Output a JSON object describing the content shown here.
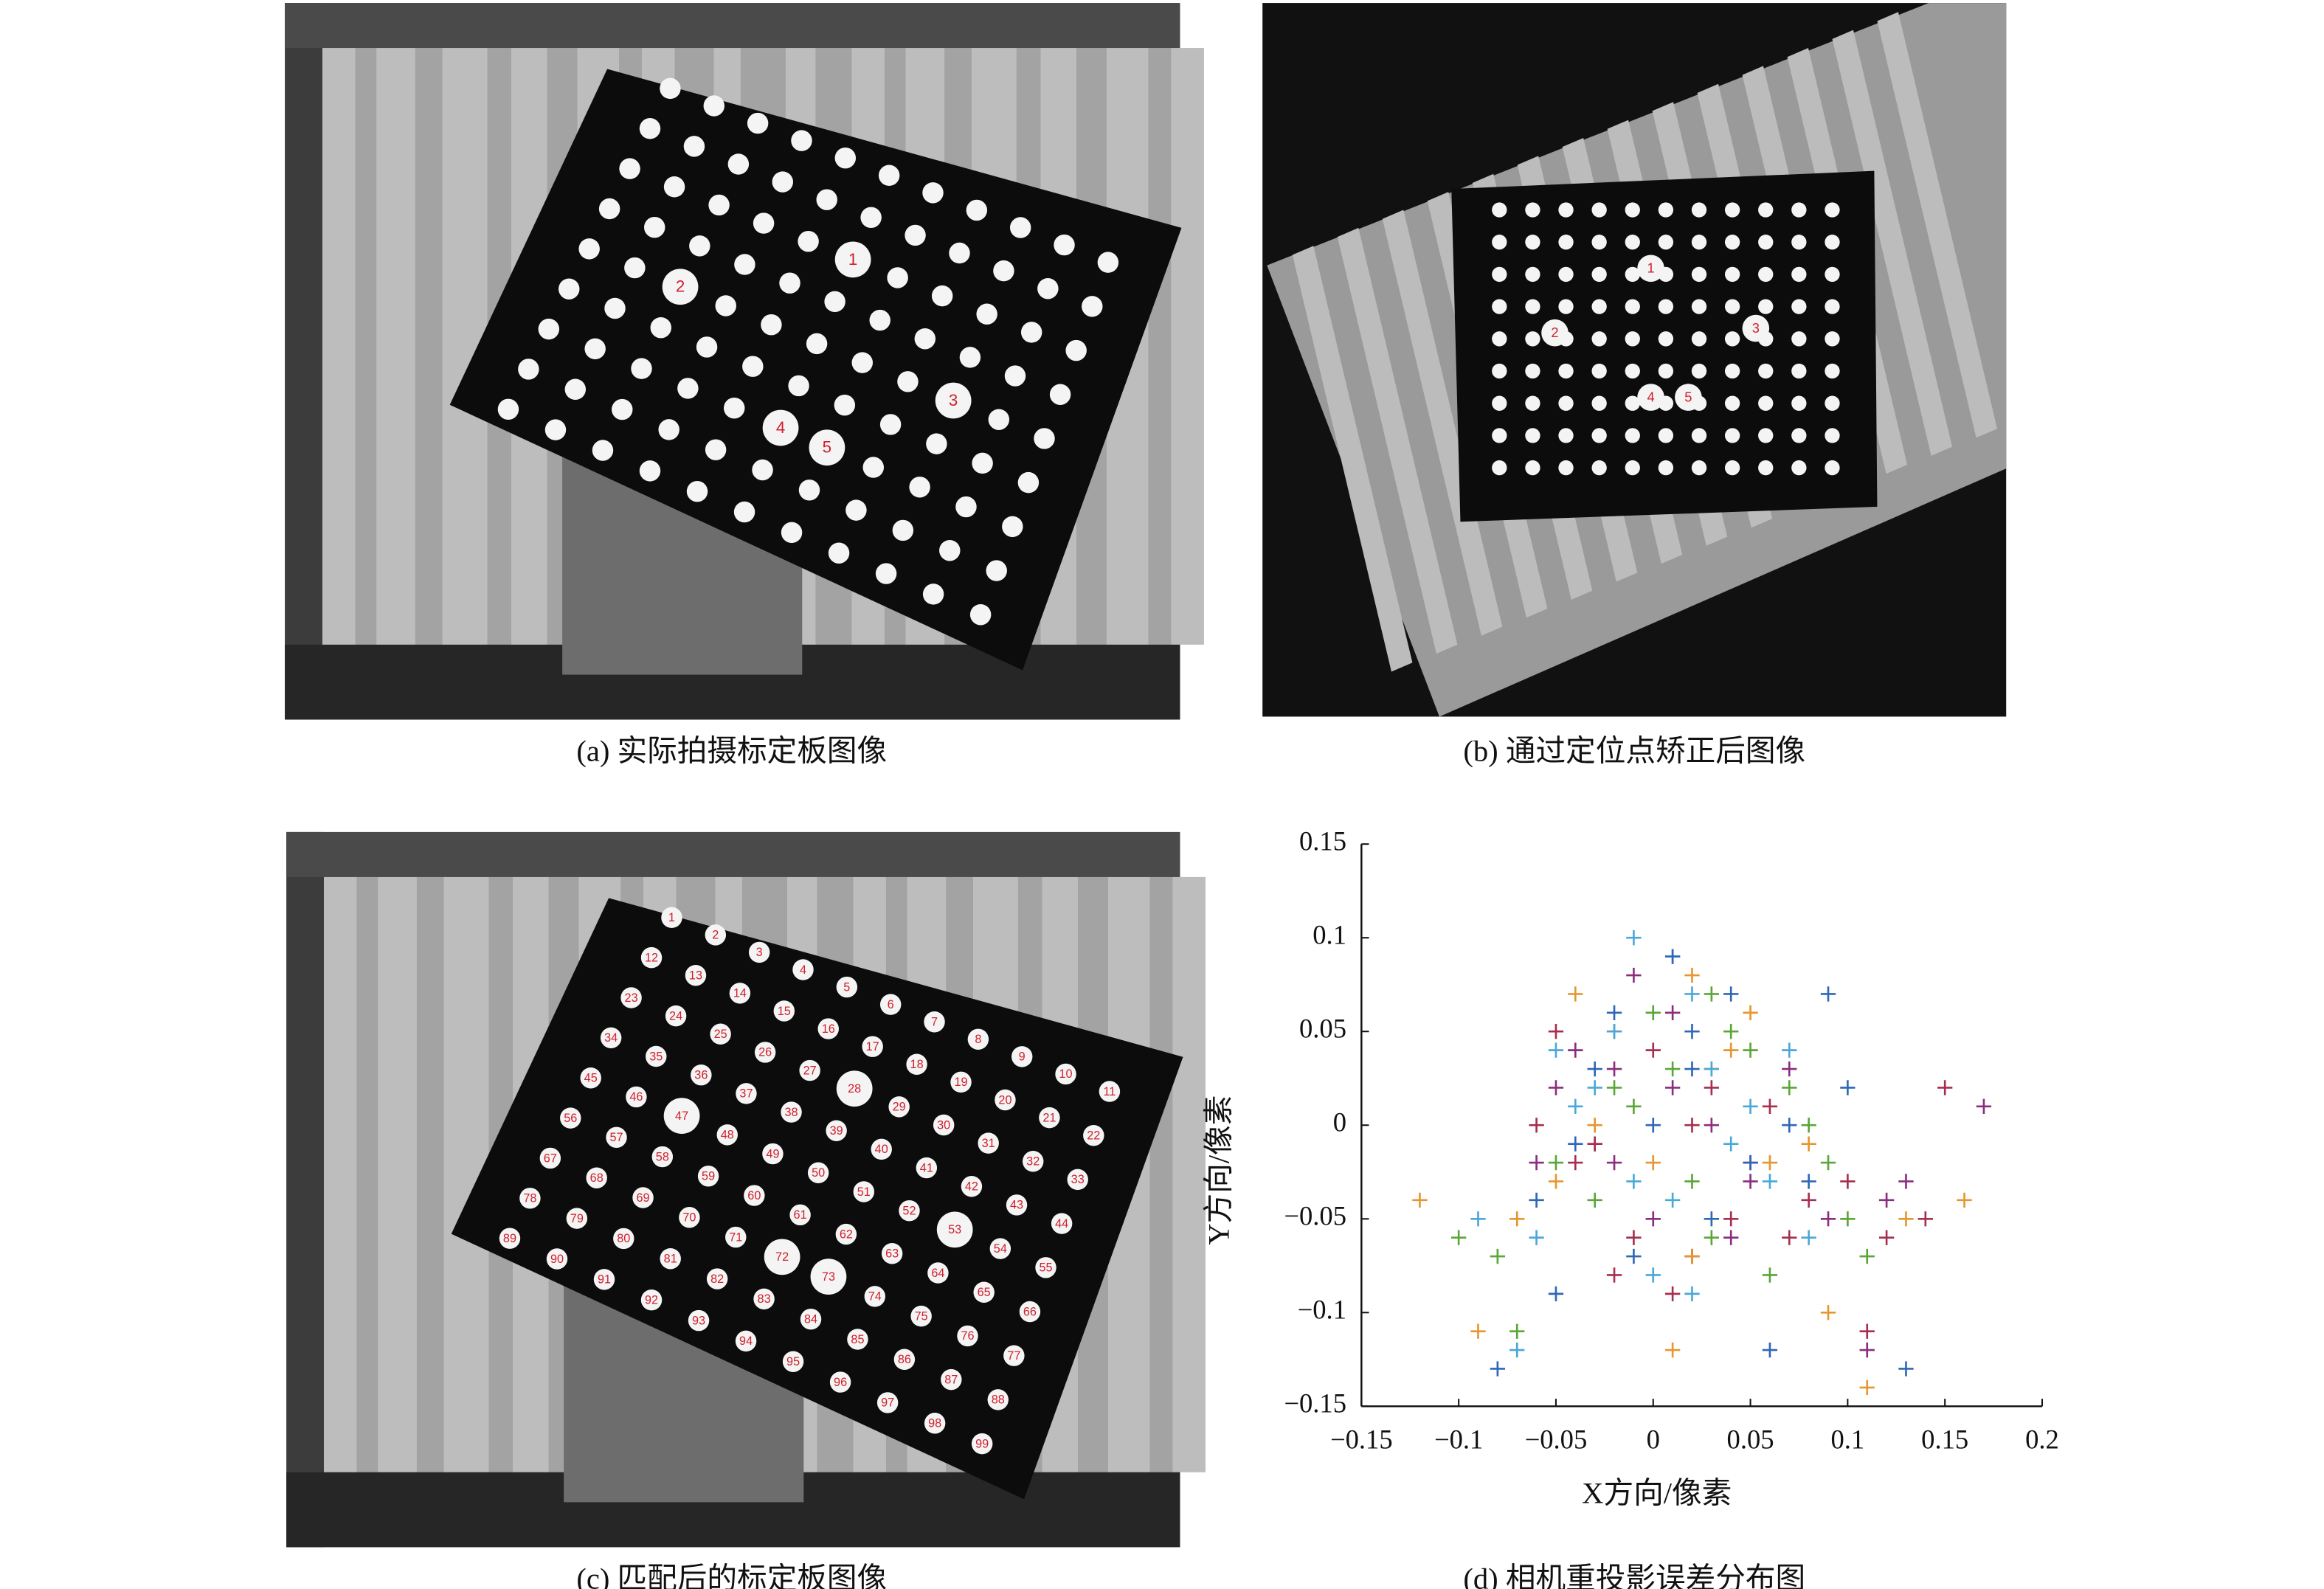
{
  "panels": [
    {
      "caption": "(a) 实际拍摄标定板图像",
      "dot_labels": [
        "1",
        "2",
        "3",
        "4",
        "5"
      ]
    },
    {
      "caption": "(b) 通过定位点矫正后图像",
      "dot_labels": [
        "1",
        "2",
        "3",
        "4",
        "5"
      ]
    },
    {
      "caption": "(c) 匹配后的标定板图像",
      "dot_labels": [
        "1",
        "2",
        "3",
        "4",
        "5",
        "6",
        "7",
        "8",
        "9",
        "10",
        "11",
        "12",
        "13",
        "14",
        "15",
        "16",
        "17",
        "18",
        "19",
        "20",
        "21",
        "22",
        "23",
        "24",
        "25",
        "26",
        "27",
        "28",
        "29",
        "30",
        "31",
        "32",
        "33",
        "34",
        "35",
        "36",
        "37",
        "38",
        "39",
        "40",
        "41",
        "42",
        "43",
        "44",
        "45",
        "46",
        "47",
        "48",
        "49",
        "50",
        "51",
        "52",
        "53",
        "54",
        "55",
        "56",
        "57",
        "58",
        "59",
        "60",
        "61",
        "62",
        "63",
        "64",
        "65",
        "66",
        "67",
        "68",
        "69",
        "70",
        "71",
        "72",
        "73",
        "74",
        "75",
        "76",
        "77",
        "78",
        "79",
        "80",
        "81",
        "82",
        "83",
        "84",
        "85",
        "86",
        "87",
        "88",
        "89",
        "90",
        "91",
        "92",
        "93",
        "94",
        "95",
        "96",
        "97",
        "98",
        "99"
      ]
    }
  ],
  "chart_data": {
    "type": "scatter",
    "caption": "(d) 相机重投影误差分布图",
    "x_label": "X方向/像素",
    "y_label": "Y方向/像素",
    "xlim": [
      -0.15,
      0.2
    ],
    "xticks": [
      {
        "value": -0.15,
        "label": "−0.15"
      },
      {
        "value": -0.1,
        "label": "−0.1"
      },
      {
        "value": -0.05,
        "label": "−0.05"
      },
      0,
      0.05,
      0.1,
      0.15,
      0.2
    ],
    "ylim": [
      -0.15,
      0.15
    ],
    "yticks": [
      {
        "value": -0.15,
        "label": "−0.15"
      },
      {
        "value": -0.1,
        "label": "−0.1"
      },
      {
        "value": -0.05,
        "label": "−0.05"
      },
      0,
      0.05,
      0.1,
      0.15
    ],
    "marker": "+",
    "series": [
      {
        "color": "#8b2d7e",
        "x": [
          -0.02,
          0.01,
          -0.03,
          0.03,
          0.0,
          -0.01,
          0.05,
          -0.05,
          0.02,
          0.09,
          0.11,
          0.17,
          0.13,
          -0.04,
          0.01,
          0.04,
          -0.02,
          0.12,
          0.07,
          -0.06
        ],
        "y": [
          0.03,
          0.06,
          -0.01,
          0.0,
          -0.05,
          0.08,
          -0.03,
          0.02,
          -0.07,
          -0.05,
          -0.12,
          0.01,
          -0.03,
          0.04,
          0.02,
          -0.06,
          -0.02,
          -0.04,
          0.03,
          -0.02
        ]
      },
      {
        "color": "#e6962e",
        "x": [
          -0.12,
          0.02,
          -0.04,
          0.0,
          0.03,
          0.16,
          0.09,
          -0.09,
          0.06,
          -0.02,
          0.04,
          0.11,
          -0.07,
          0.01,
          0.05,
          0.13,
          -0.03,
          0.08,
          0.02,
          -0.05
        ],
        "y": [
          -0.04,
          0.08,
          0.07,
          -0.02,
          0.03,
          -0.04,
          -0.1,
          -0.11,
          -0.02,
          0.05,
          0.04,
          -0.14,
          -0.05,
          -0.12,
          0.06,
          -0.05,
          0.0,
          -0.01,
          -0.07,
          -0.03
        ]
      },
      {
        "color": "#5aa636",
        "x": [
          -0.1,
          0.01,
          -0.03,
          0.07,
          0.09,
          0.06,
          0.08,
          -0.07,
          0.03,
          -0.01,
          0.04,
          -0.05,
          0.0,
          0.1,
          0.02,
          -0.08,
          0.05,
          0.11,
          -0.02,
          0.03
        ],
        "y": [
          -0.06,
          0.03,
          -0.04,
          0.02,
          -0.02,
          -0.08,
          0.0,
          -0.11,
          -0.06,
          0.01,
          0.05,
          -0.02,
          0.06,
          -0.05,
          -0.03,
          -0.07,
          0.04,
          -0.07,
          0.02,
          0.07
        ]
      },
      {
        "color": "#4aa8d8",
        "x": [
          -0.01,
          0.02,
          -0.07,
          -0.04,
          0.04,
          0.07,
          0.01,
          -0.02,
          0.05,
          -0.09,
          0.0,
          -0.06,
          0.03,
          0.06,
          -0.03,
          0.08,
          0.01,
          -0.05,
          0.02,
          -0.01
        ],
        "y": [
          0.1,
          0.07,
          -0.12,
          0.01,
          -0.01,
          0.04,
          -0.04,
          0.05,
          0.01,
          -0.05,
          -0.08,
          -0.06,
          0.03,
          -0.03,
          0.02,
          -0.06,
          0.09,
          0.04,
          -0.09,
          -0.03
        ]
      },
      {
        "color": "#a72e4e",
        "x": [
          0.0,
          -0.03,
          0.02,
          0.04,
          -0.01,
          0.1,
          0.12,
          0.14,
          0.08,
          -0.05,
          0.06,
          0.03,
          -0.02,
          0.01,
          0.11,
          -0.04,
          0.05,
          0.07,
          -0.06,
          0.15
        ],
        "y": [
          0.04,
          -0.01,
          0.0,
          -0.05,
          -0.06,
          -0.03,
          -0.06,
          -0.05,
          -0.04,
          0.05,
          0.01,
          0.02,
          -0.08,
          -0.09,
          -0.11,
          -0.02,
          -0.02,
          -0.06,
          0.0,
          0.02
        ]
      },
      {
        "color": "#2e67b8",
        "x": [
          0.09,
          -0.08,
          -0.05,
          0.06,
          0.0,
          -0.03,
          0.02,
          0.13,
          0.03,
          -0.01,
          0.04,
          0.07,
          -0.06,
          0.01,
          -0.02,
          0.05,
          0.08,
          -0.04,
          0.02,
          0.1
        ],
        "y": [
          0.07,
          -0.13,
          -0.09,
          -0.12,
          0.0,
          0.03,
          0.05,
          -0.13,
          -0.05,
          -0.07,
          0.07,
          0.0,
          -0.04,
          0.09,
          0.06,
          -0.02,
          -0.03,
          -0.01,
          0.03,
          0.02
        ]
      }
    ]
  }
}
